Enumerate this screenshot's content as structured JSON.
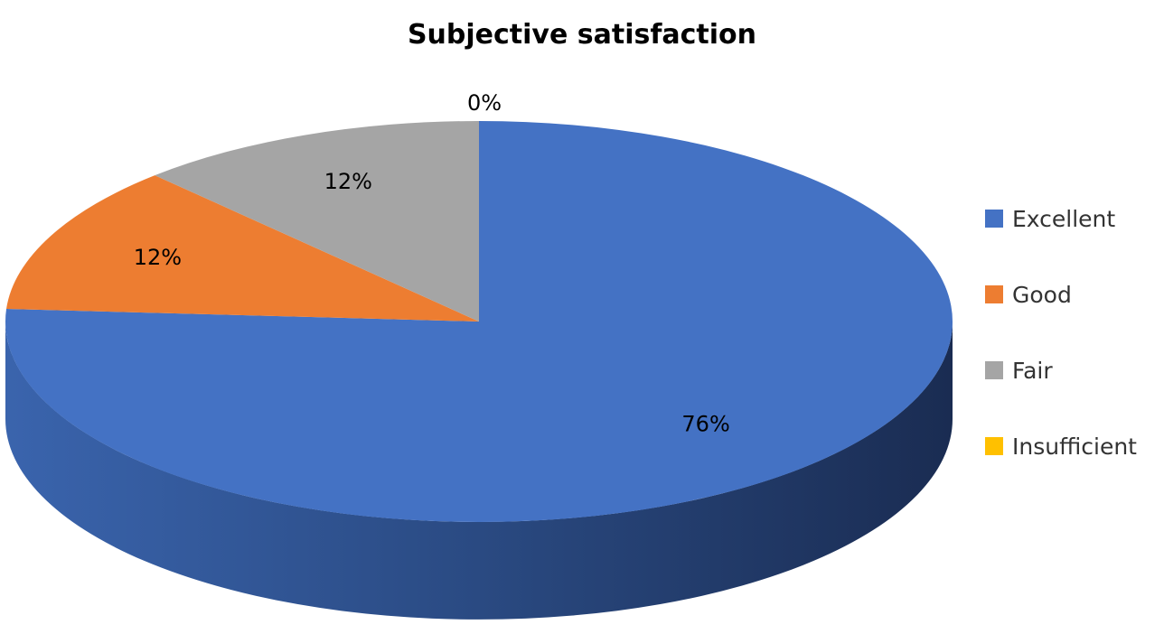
{
  "chart_data": {
    "type": "pie",
    "style": "3d",
    "title": "Subjective satisfaction",
    "categories": [
      "Excellent",
      "Good",
      "Fair",
      "Insufficient"
    ],
    "values": [
      76,
      12,
      12,
      0
    ],
    "data_labels": [
      "76%",
      "12%",
      "12%",
      "0%"
    ],
    "legend_placement": "right",
    "colors": [
      "#4472c4",
      "#ed7d31",
      "#a5a5a5",
      "#ffc000"
    ]
  }
}
